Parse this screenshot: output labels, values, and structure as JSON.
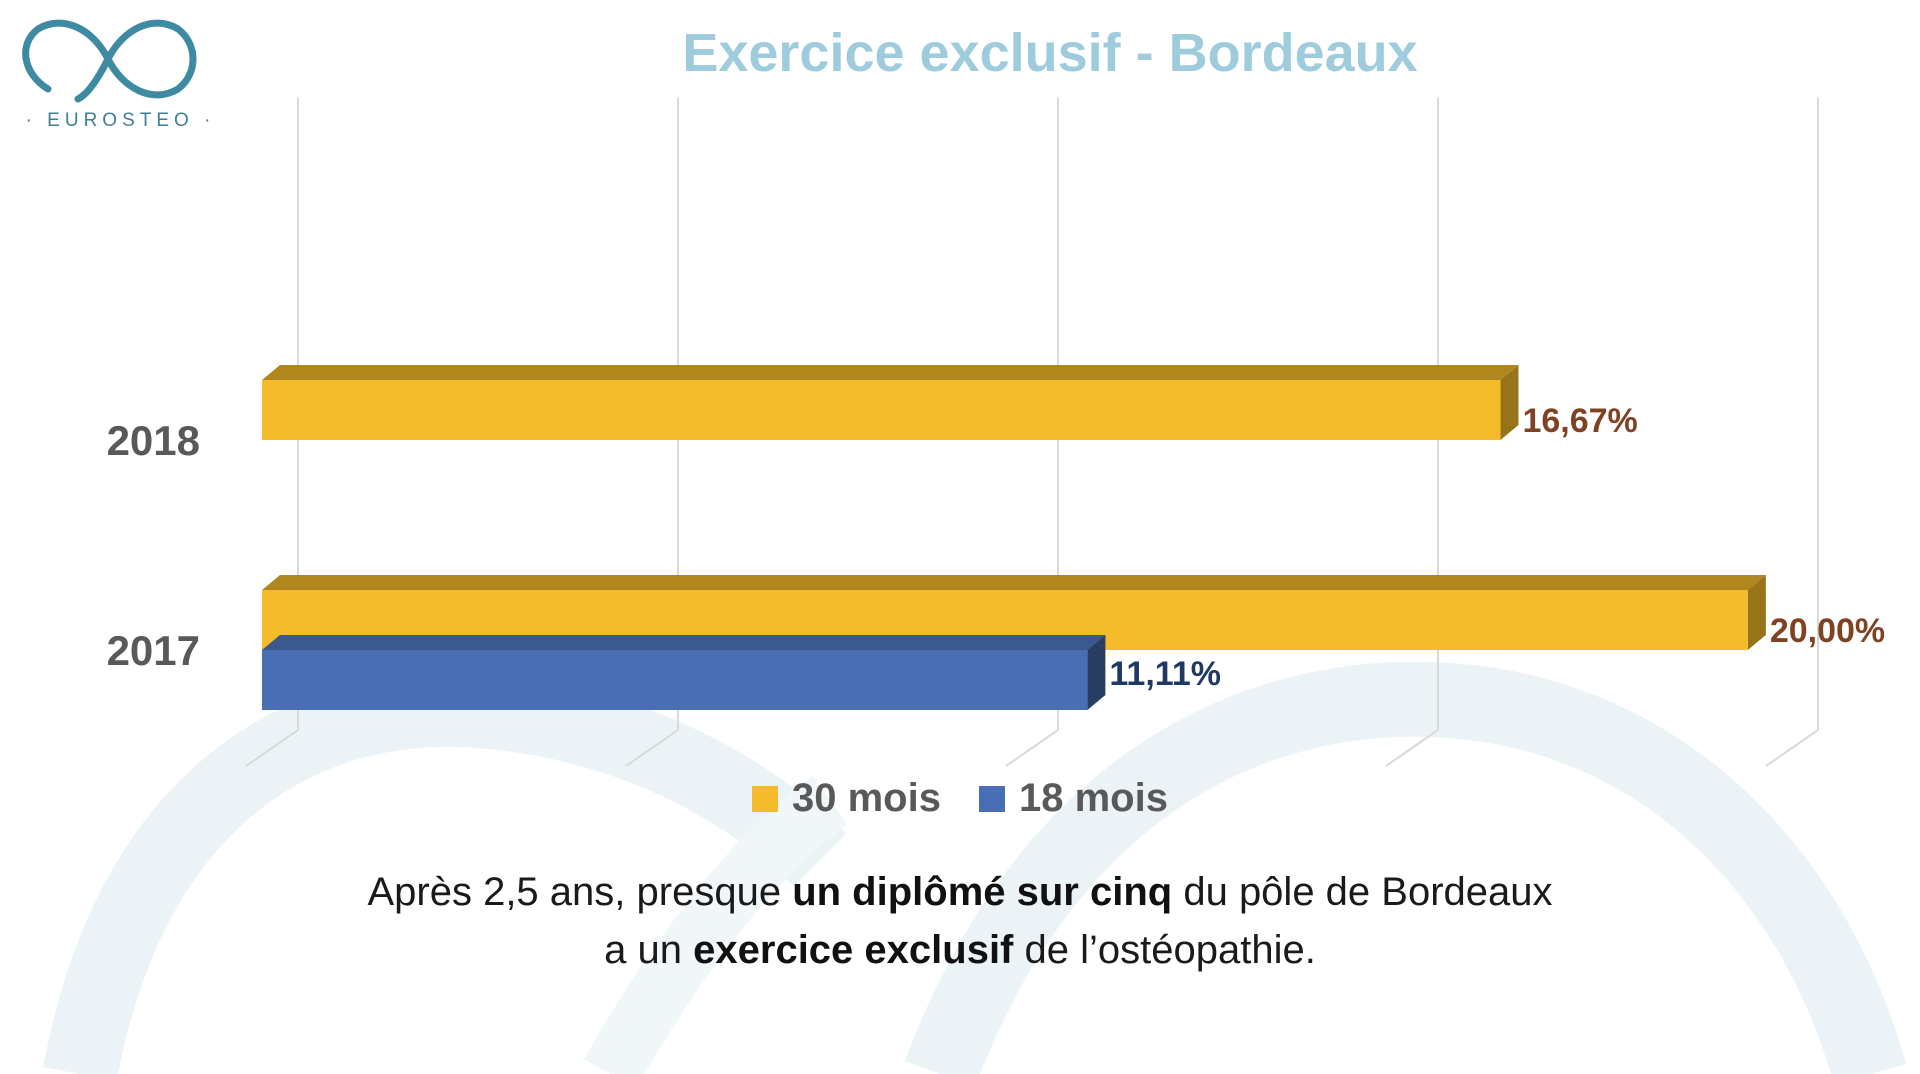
{
  "logo": {
    "name": "EUROSTEO",
    "text": "· EUROSTEO ·",
    "color": "#3f7f95"
  },
  "title": "Exercice exclusif - Bordeaux",
  "chart_data": {
    "type": "bar",
    "orientation": "horizontal",
    "categories": [
      "2018",
      "2017"
    ],
    "series": [
      {
        "name": "30 mois",
        "color": "#f4bb2a",
        "values": [
          16.67,
          20.0
        ],
        "labels": [
          "16,67%",
          "20,00%"
        ],
        "label_color": "#7f4324"
      },
      {
        "name": "18 mois",
        "color": "#4a6eb3",
        "values": [
          null,
          11.11
        ],
        "labels": [
          null,
          "11,11%"
        ],
        "label_color": "#1f3864"
      }
    ],
    "xlim": [
      0,
      20.5
    ],
    "grid": true,
    "legend": "bottom",
    "colors": {
      "grid": "#d9d9d9",
      "category_label": "#595959"
    }
  },
  "caption": {
    "line1": {
      "before": "Après 2,5 ans, presque ",
      "bold": "un diplômé sur cinq",
      "after": " du pôle de Bordeaux"
    },
    "line2": {
      "before": "a un ",
      "bold": "exercice exclusif",
      "after": " de l’ostéopathie."
    }
  }
}
